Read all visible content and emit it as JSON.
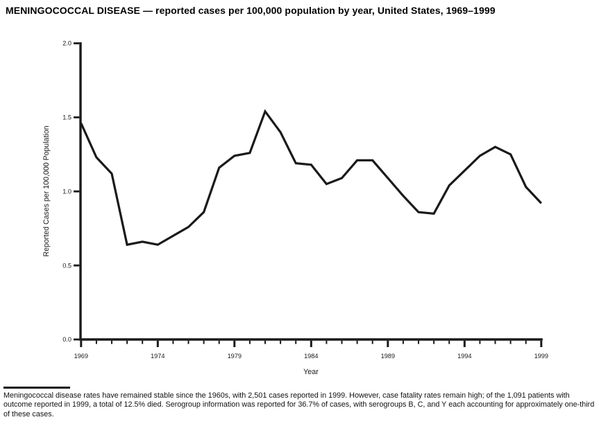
{
  "page": {
    "title": "MENINGOCOCCAL DISEASE — reported cases per 100,000 population by year, United States, 1969–1999",
    "footnote": "Meningococcal disease rates have remained stable since the 1960s, with 2,501 cases reported in 1999. However, case fatality rates remain high; of the 1,091 patients with outcome reported in 1999, a total of 12.5% died. Serogroup information was reported for 36.7% of cases, with serogroups B, C, and Y each accounting for approximately one-third of these cases."
  },
  "chart_data": {
    "type": "line",
    "title": "MENINGOCOCCAL DISEASE — reported cases per 100,000 population by year, United States, 1969–1999",
    "xlabel": "Year",
    "ylabel": "Reported Cases per 100,000 Population",
    "x": [
      1969,
      1970,
      1971,
      1972,
      1973,
      1974,
      1975,
      1976,
      1977,
      1978,
      1979,
      1980,
      1981,
      1982,
      1983,
      1984,
      1985,
      1986,
      1987,
      1988,
      1989,
      1990,
      1991,
      1992,
      1993,
      1994,
      1995,
      1996,
      1997,
      1998,
      1999
    ],
    "series": [
      {
        "name": "Reported cases per 100,000 population",
        "values": [
          1.46,
          1.23,
          1.12,
          0.64,
          0.66,
          0.64,
          0.7,
          0.76,
          0.86,
          1.16,
          1.24,
          1.26,
          1.54,
          1.4,
          1.19,
          1.18,
          1.05,
          1.09,
          1.21,
          1.21,
          1.09,
          0.97,
          0.86,
          0.85,
          1.04,
          1.14,
          1.24,
          1.3,
          1.25,
          1.03,
          0.92
        ]
      }
    ],
    "ylim": [
      0.0,
      2.0
    ],
    "y_ticks": [
      0.0,
      0.5,
      1.0,
      1.5,
      2.0
    ],
    "x_tick_years": [
      1969,
      1974,
      1979,
      1984,
      1989,
      1994,
      1999
    ],
    "grid": false,
    "legend": "none",
    "line_color": "#1a1a1a"
  }
}
